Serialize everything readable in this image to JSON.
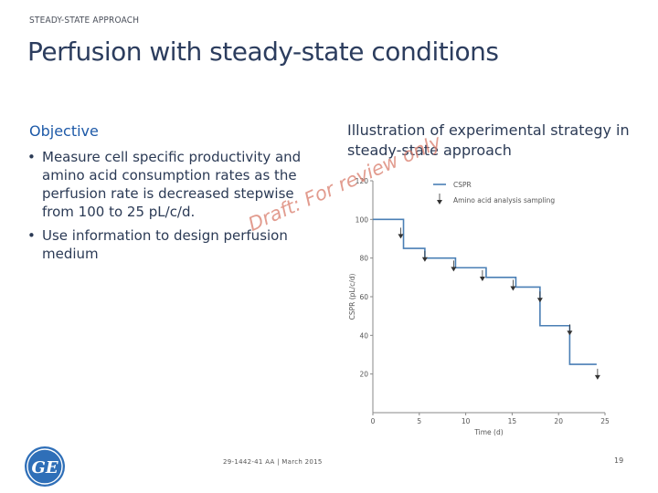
{
  "header": {
    "eyebrow": "STEADY-STATE APPROACH",
    "title": "Perfusion with steady-state conditions"
  },
  "left": {
    "heading": "Objective",
    "bullets": [
      "Measure cell specific productivity and amino acid consumption rates as the perfusion rate is decreased stepwise from 100 to 25 pL/c/d.",
      "Use information to design perfusion medium"
    ]
  },
  "right": {
    "caption": "Illustration of experimental strategy in steady-state approach"
  },
  "watermark": {
    "text": "Draft: For review only"
  },
  "chart_data": {
    "type": "line",
    "xlabel": "Time (d)",
    "ylabel": "CSPR (pL/c/d)",
    "xlim": [
      0,
      25
    ],
    "ylim": [
      0,
      120
    ],
    "xticks": [
      0,
      5,
      10,
      15,
      20,
      25
    ],
    "yticks": [
      20,
      40,
      60,
      80,
      100,
      120
    ],
    "grid": false,
    "legend_position": "top-right",
    "series": [
      {
        "name": "CSPR",
        "color": "#4a7fb5",
        "x": [
          0,
          3.3,
          3.3,
          5.6,
          5.6,
          8.9,
          8.9,
          12.2,
          12.2,
          15.4,
          15.4,
          18.0,
          18.0,
          21.2,
          21.2,
          24.1
        ],
        "y": [
          100,
          100,
          85,
          85,
          80,
          80,
          75,
          75,
          70,
          70,
          65,
          65,
          45,
          45,
          25,
          25
        ]
      },
      {
        "name": "Amino acid analysis sampling",
        "marker": "triangle-down",
        "color": "#333333",
        "x": [
          3.0,
          5.6,
          8.7,
          11.8,
          15.1,
          18.0,
          21.2,
          24.2
        ],
        "y": [
          91,
          79,
          74,
          69,
          64,
          58,
          41,
          18
        ]
      }
    ]
  },
  "footer": {
    "logo_text": "GE",
    "reference": "29-1442-41 AA | March 2015",
    "page_number": "19"
  }
}
